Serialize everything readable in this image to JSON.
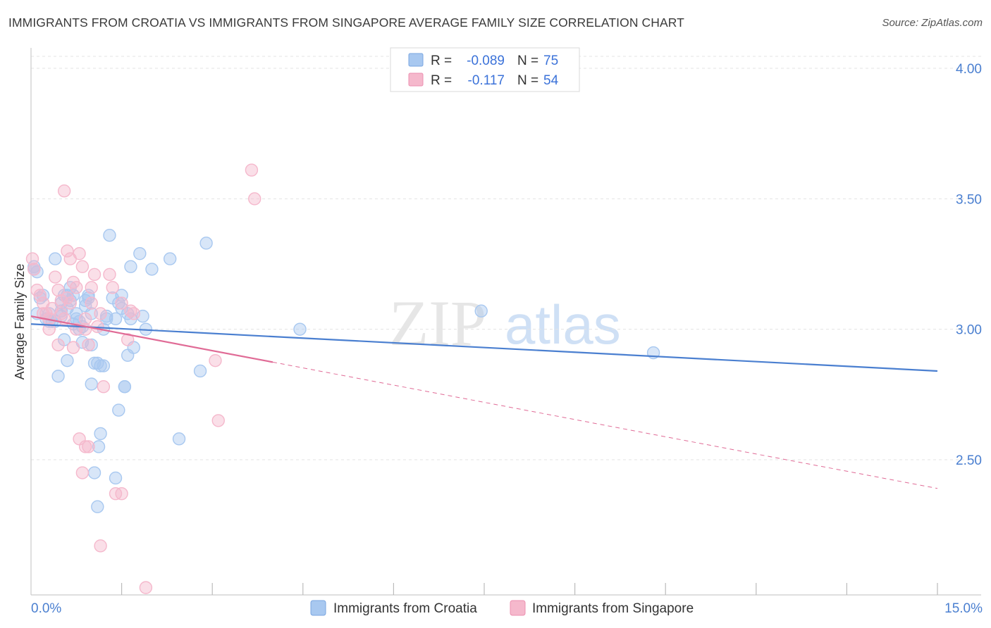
{
  "header": {
    "title": "IMMIGRANTS FROM CROATIA VS IMMIGRANTS FROM SINGAPORE AVERAGE FAMILY SIZE CORRELATION CHART",
    "source": "Source: ZipAtlas.com"
  },
  "watermark": {
    "zip": "ZIP",
    "atlas": "atlas"
  },
  "legend": {
    "r_label": "R =",
    "n_label": "N =",
    "rows": [
      {
        "r": "-0.089",
        "n": "75",
        "color": "#a8c8f0"
      },
      {
        "r": "-0.117",
        "n": "54",
        "color": "#f5b8cc"
      }
    ]
  },
  "chart_data": {
    "type": "scatter",
    "title": "IMMIGRANTS FROM CROATIA VS IMMIGRANTS FROM SINGAPORE AVERAGE FAMILY SIZE CORRELATION CHART",
    "xlabel": "",
    "ylabel": "Average Family Size",
    "xlim": [
      0,
      15
    ],
    "ylim": [
      2.0,
      4.1
    ],
    "x_tick_labels": [
      "0.0%",
      "15.0%"
    ],
    "y_ticks": [
      2.5,
      3.0,
      3.5,
      4.0
    ],
    "y_tick_labels": [
      "2.50",
      "3.00",
      "3.50",
      "4.00"
    ],
    "series": [
      {
        "name": "Immigrants from Croatia",
        "color": "#4a7fd0",
        "fill": "#a8c8f0",
        "trend": {
          "x0": 0,
          "y0": 3.02,
          "x1": 15,
          "y1": 2.84,
          "solid_to": 15
        },
        "points": [
          [
            0.05,
            3.24
          ],
          [
            0.05,
            3.23
          ],
          [
            0.1,
            3.22
          ],
          [
            0.1,
            3.06
          ],
          [
            0.15,
            3.12
          ],
          [
            0.2,
            3.13
          ],
          [
            0.25,
            3.04
          ],
          [
            0.3,
            3.03
          ],
          [
            0.35,
            3.03
          ],
          [
            0.4,
            3.27
          ],
          [
            0.4,
            3.03
          ],
          [
            0.45,
            2.82
          ],
          [
            0.5,
            3.1
          ],
          [
            0.5,
            3.05
          ],
          [
            0.5,
            3.07
          ],
          [
            0.55,
            3.13
          ],
          [
            0.55,
            2.96
          ],
          [
            0.6,
            2.88
          ],
          [
            0.6,
            3.13
          ],
          [
            0.65,
            3.11
          ],
          [
            0.65,
            3.16
          ],
          [
            0.7,
            3.13
          ],
          [
            0.75,
            3.04
          ],
          [
            0.75,
            3.06
          ],
          [
            0.8,
            3.03
          ],
          [
            0.8,
            3.0
          ],
          [
            0.85,
            3.01
          ],
          [
            0.85,
            2.95
          ],
          [
            0.9,
            3.09
          ],
          [
            0.9,
            3.11
          ],
          [
            0.95,
            3.13
          ],
          [
            0.95,
            3.12
          ],
          [
            1.0,
            2.94
          ],
          [
            1.0,
            2.79
          ],
          [
            1.05,
            2.87
          ],
          [
            1.05,
            2.45
          ],
          [
            1.1,
            2.87
          ],
          [
            1.1,
            2.32
          ],
          [
            1.12,
            2.55
          ],
          [
            1.15,
            2.86
          ],
          [
            1.15,
            2.6
          ],
          [
            1.2,
            3.0
          ],
          [
            1.2,
            2.86
          ],
          [
            1.25,
            3.05
          ],
          [
            1.3,
            3.36
          ],
          [
            1.35,
            3.12
          ],
          [
            1.4,
            3.04
          ],
          [
            1.4,
            2.43
          ],
          [
            1.45,
            2.69
          ],
          [
            1.45,
            3.1
          ],
          [
            1.5,
            3.13
          ],
          [
            1.5,
            3.08
          ],
          [
            1.55,
            2.78
          ],
          [
            1.55,
            2.78
          ],
          [
            1.6,
            3.06
          ],
          [
            1.6,
            2.9
          ],
          [
            1.65,
            3.04
          ],
          [
            1.65,
            3.24
          ],
          [
            1.7,
            2.93
          ],
          [
            1.8,
            3.29
          ],
          [
            1.85,
            3.05
          ],
          [
            1.9,
            3.0
          ],
          [
            2.0,
            3.23
          ],
          [
            2.3,
            3.27
          ],
          [
            2.45,
            2.58
          ],
          [
            2.8,
            2.84
          ],
          [
            2.9,
            3.33
          ],
          [
            4.45,
            3.0
          ],
          [
            7.45,
            3.07
          ],
          [
            10.3,
            2.91
          ],
          [
            0.3,
            3.06
          ],
          [
            0.6,
            3.08
          ],
          [
            0.7,
            3.02
          ],
          [
            1.0,
            3.06
          ],
          [
            1.25,
            3.04
          ]
        ]
      },
      {
        "name": "Immigrants from Singapore",
        "color": "#e06b96",
        "fill": "#f5b8cc",
        "trend": {
          "x0": 0,
          "y0": 3.05,
          "x1": 15,
          "y1": 2.39,
          "solid_to": 4.0
        },
        "points": [
          [
            0.02,
            3.27
          ],
          [
            0.05,
            3.23
          ],
          [
            0.1,
            3.15
          ],
          [
            0.15,
            3.13
          ],
          [
            0.2,
            3.06
          ],
          [
            0.2,
            3.1
          ],
          [
            0.25,
            3.06
          ],
          [
            0.3,
            3.04
          ],
          [
            0.3,
            3.0
          ],
          [
            0.35,
            3.08
          ],
          [
            0.4,
            3.2
          ],
          [
            0.45,
            3.15
          ],
          [
            0.45,
            2.94
          ],
          [
            0.5,
            3.11
          ],
          [
            0.5,
            3.06
          ],
          [
            0.55,
            3.53
          ],
          [
            0.6,
            3.3
          ],
          [
            0.6,
            3.12
          ],
          [
            0.65,
            3.27
          ],
          [
            0.65,
            3.1
          ],
          [
            0.7,
            3.18
          ],
          [
            0.7,
            2.93
          ],
          [
            0.75,
            3.0
          ],
          [
            0.75,
            3.16
          ],
          [
            0.8,
            3.29
          ],
          [
            0.8,
            2.58
          ],
          [
            0.85,
            3.24
          ],
          [
            0.85,
            2.45
          ],
          [
            0.9,
            2.55
          ],
          [
            0.9,
            3.04
          ],
          [
            0.9,
            3.0
          ],
          [
            0.95,
            2.55
          ],
          [
            0.95,
            2.94
          ],
          [
            1.0,
            3.16
          ],
          [
            1.0,
            3.1
          ],
          [
            1.05,
            3.21
          ],
          [
            1.1,
            3.01
          ],
          [
            1.15,
            3.06
          ],
          [
            1.15,
            2.17
          ],
          [
            1.2,
            2.78
          ],
          [
            1.3,
            3.21
          ],
          [
            1.35,
            3.16
          ],
          [
            1.4,
            2.37
          ],
          [
            1.5,
            3.1
          ],
          [
            1.5,
            2.37
          ],
          [
            1.6,
            2.96
          ],
          [
            1.65,
            3.07
          ],
          [
            1.7,
            3.06
          ],
          [
            1.9,
            2.01
          ],
          [
            3.05,
            2.88
          ],
          [
            3.1,
            2.65
          ],
          [
            3.65,
            3.61
          ],
          [
            3.7,
            3.5
          ],
          [
            0.55,
            3.04
          ]
        ]
      }
    ]
  },
  "bottom_legend": [
    {
      "label": "Immigrants from Croatia"
    },
    {
      "label": "Immigrants from Singapore"
    }
  ]
}
